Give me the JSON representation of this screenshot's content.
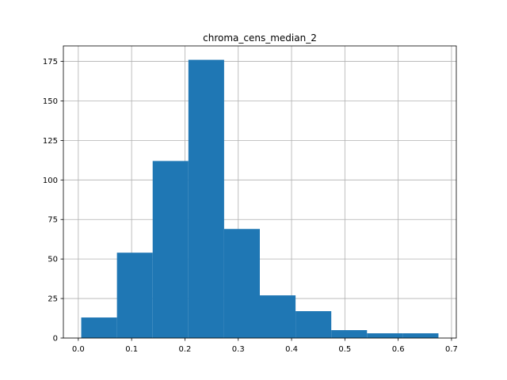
{
  "chart_data": {
    "type": "bar",
    "title": "chroma_cens_median_2",
    "xlabel": "",
    "ylabel": "",
    "bin_edges": [
      0.0055,
      0.0725,
      0.1395,
      0.2065,
      0.2735,
      0.3405,
      0.4075,
      0.4745,
      0.5415,
      0.6085,
      0.6755
    ],
    "values": [
      13,
      54,
      112,
      176,
      69,
      27,
      17,
      5,
      3,
      3
    ],
    "xlim": [
      -0.028,
      0.709
    ],
    "ylim": [
      0,
      184.8
    ],
    "xticks": [
      0.0,
      0.1,
      0.2,
      0.3,
      0.4,
      0.5,
      0.6,
      0.7
    ],
    "xtick_labels": [
      "0.0",
      "0.1",
      "0.2",
      "0.3",
      "0.4",
      "0.5",
      "0.6",
      "0.7"
    ],
    "yticks": [
      0,
      25,
      50,
      75,
      100,
      125,
      150,
      175
    ],
    "ytick_labels": [
      "0",
      "25",
      "50",
      "75",
      "100",
      "125",
      "150",
      "175"
    ],
    "grid": true,
    "legend": "none",
    "bar_color": "#1f77b4",
    "grid_color": "#b0b0b0"
  }
}
